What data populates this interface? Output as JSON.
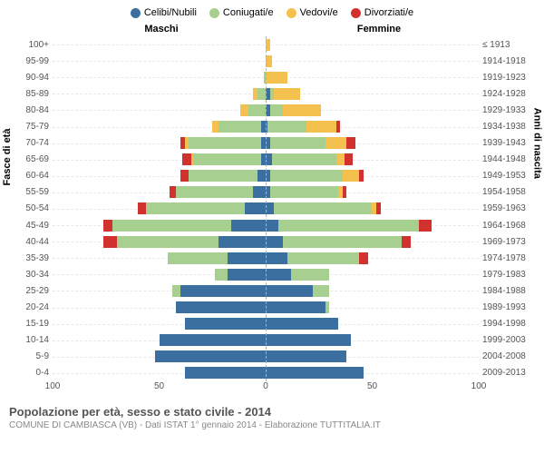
{
  "legend": [
    {
      "label": "Celibi/Nubili",
      "color": "#3b6fa0"
    },
    {
      "label": "Coniugati/e",
      "color": "#a7cf8f"
    },
    {
      "label": "Vedovi/e",
      "color": "#f4c04e"
    },
    {
      "label": "Divorziati/e",
      "color": "#d2322d"
    }
  ],
  "header_male": "Maschi",
  "header_female": "Femmine",
  "y_left_title": "Fasce di età",
  "y_right_title": "Anni di nascita",
  "age_labels": [
    "100+",
    "95-99",
    "90-94",
    "85-89",
    "80-84",
    "75-79",
    "70-74",
    "65-69",
    "60-64",
    "55-59",
    "50-54",
    "45-49",
    "40-44",
    "35-39",
    "30-34",
    "25-29",
    "20-24",
    "15-19",
    "10-14",
    "5-9",
    "0-4"
  ],
  "birth_labels": [
    "≤ 1913",
    "1914-1918",
    "1919-1923",
    "1924-1928",
    "1929-1933",
    "1934-1938",
    "1939-1943",
    "1944-1948",
    "1949-1953",
    "1954-1958",
    "1959-1963",
    "1964-1968",
    "1969-1973",
    "1974-1978",
    "1979-1983",
    "1984-1988",
    "1989-1993",
    "1994-1998",
    "1999-2003",
    "2004-2008",
    "2009-2013"
  ],
  "x_ticks": [
    100,
    50,
    0,
    50,
    100
  ],
  "x_max": 100,
  "colors": {
    "single": "#3b6fa0",
    "married": "#a7cf8f",
    "widowed": "#f4c04e",
    "divorced": "#d2322d",
    "background": "#ffffff",
    "grid": "#e8e8e8",
    "center_line": "#99b3d4",
    "text": "#555555"
  },
  "bars": [
    {
      "m": {
        "s": 0,
        "c": 0,
        "w": 0,
        "d": 0
      },
      "f": {
        "s": 0,
        "c": 0,
        "w": 2,
        "d": 0
      }
    },
    {
      "m": {
        "s": 0,
        "c": 0,
        "w": 0,
        "d": 0
      },
      "f": {
        "s": 0,
        "c": 0,
        "w": 3,
        "d": 0
      }
    },
    {
      "m": {
        "s": 0,
        "c": 1,
        "w": 0,
        "d": 0
      },
      "f": {
        "s": 0,
        "c": 0,
        "w": 10,
        "d": 0
      }
    },
    {
      "m": {
        "s": 0,
        "c": 4,
        "w": 2,
        "d": 0
      },
      "f": {
        "s": 2,
        "c": 2,
        "w": 12,
        "d": 0
      }
    },
    {
      "m": {
        "s": 0,
        "c": 8,
        "w": 4,
        "d": 0
      },
      "f": {
        "s": 2,
        "c": 6,
        "w": 18,
        "d": 0
      }
    },
    {
      "m": {
        "s": 2,
        "c": 20,
        "w": 3,
        "d": 0
      },
      "f": {
        "s": 1,
        "c": 18,
        "w": 14,
        "d": 2
      }
    },
    {
      "m": {
        "s": 2,
        "c": 34,
        "w": 2,
        "d": 2
      },
      "f": {
        "s": 2,
        "c": 26,
        "w": 10,
        "d": 4
      }
    },
    {
      "m": {
        "s": 2,
        "c": 32,
        "w": 1,
        "d": 4
      },
      "f": {
        "s": 3,
        "c": 30,
        "w": 4,
        "d": 4
      }
    },
    {
      "m": {
        "s": 4,
        "c": 32,
        "w": 0,
        "d": 4
      },
      "f": {
        "s": 2,
        "c": 34,
        "w": 8,
        "d": 2
      }
    },
    {
      "m": {
        "s": 6,
        "c": 36,
        "w": 0,
        "d": 3
      },
      "f": {
        "s": 2,
        "c": 32,
        "w": 2,
        "d": 2
      }
    },
    {
      "m": {
        "s": 10,
        "c": 46,
        "w": 0,
        "d": 4
      },
      "f": {
        "s": 4,
        "c": 46,
        "w": 2,
        "d": 2
      }
    },
    {
      "m": {
        "s": 16,
        "c": 56,
        "w": 0,
        "d": 4
      },
      "f": {
        "s": 6,
        "c": 66,
        "w": 0,
        "d": 6
      }
    },
    {
      "m": {
        "s": 22,
        "c": 48,
        "w": 0,
        "d": 6
      },
      "f": {
        "s": 8,
        "c": 56,
        "w": 0,
        "d": 4
      }
    },
    {
      "m": {
        "s": 18,
        "c": 28,
        "w": 0,
        "d": 0
      },
      "f": {
        "s": 10,
        "c": 34,
        "w": 0,
        "d": 4
      }
    },
    {
      "m": {
        "s": 18,
        "c": 6,
        "w": 0,
        "d": 0
      },
      "f": {
        "s": 12,
        "c": 18,
        "w": 0,
        "d": 0
      }
    },
    {
      "m": {
        "s": 40,
        "c": 4,
        "w": 0,
        "d": 0
      },
      "f": {
        "s": 22,
        "c": 8,
        "w": 0,
        "d": 0
      }
    },
    {
      "m": {
        "s": 42,
        "c": 0,
        "w": 0,
        "d": 0
      },
      "f": {
        "s": 28,
        "c": 2,
        "w": 0,
        "d": 0
      }
    },
    {
      "m": {
        "s": 38,
        "c": 0,
        "w": 0,
        "d": 0
      },
      "f": {
        "s": 34,
        "c": 0,
        "w": 0,
        "d": 0
      }
    },
    {
      "m": {
        "s": 50,
        "c": 0,
        "w": 0,
        "d": 0
      },
      "f": {
        "s": 40,
        "c": 0,
        "w": 0,
        "d": 0
      }
    },
    {
      "m": {
        "s": 52,
        "c": 0,
        "w": 0,
        "d": 0
      },
      "f": {
        "s": 38,
        "c": 0,
        "w": 0,
        "d": 0
      }
    },
    {
      "m": {
        "s": 38,
        "c": 0,
        "w": 0,
        "d": 0
      },
      "f": {
        "s": 46,
        "c": 0,
        "w": 0,
        "d": 0
      }
    }
  ],
  "footer_title": "Popolazione per età, sesso e stato civile - 2014",
  "footer_sub": "COMUNE DI CAMBIASCA (VB) - Dati ISTAT 1° gennaio 2014 - Elaborazione TUTTITALIA.IT"
}
